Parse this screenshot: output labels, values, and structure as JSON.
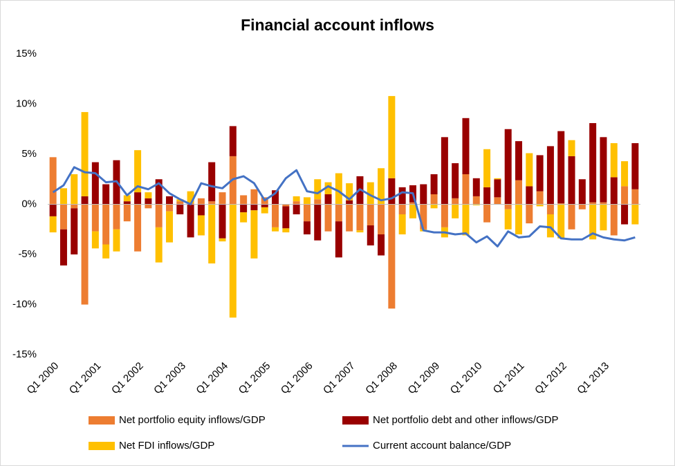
{
  "chart_data": {
    "type": "bar",
    "stacked": true,
    "title": "Financial account inflows",
    "categories": [
      "Q1 2000",
      null,
      null,
      null,
      "Q1 2001",
      null,
      null,
      null,
      "Q1 2002",
      null,
      null,
      null,
      "Q1 2003",
      null,
      null,
      null,
      "Q1 2004",
      null,
      null,
      null,
      "Q1 2005",
      null,
      null,
      null,
      "Q1 2006",
      null,
      null,
      null,
      "Q1 2007",
      null,
      null,
      null,
      "Q1 2008",
      null,
      null,
      null,
      "Q1 2009",
      null,
      null,
      null,
      "Q1 2010",
      null,
      null,
      null,
      "Q1 2011",
      null,
      null,
      null,
      "Q1 2012",
      null,
      null,
      null,
      "Q1 2013",
      null,
      null,
      null
    ],
    "series": [
      {
        "name": "Net portfolio equity inflows/GDP",
        "type": "bar",
        "color": "#ED7D31",
        "values": [
          4.7,
          -2.5,
          -0.4,
          -10.0,
          -2.7,
          -4.0,
          -2.5,
          -1.7,
          -4.7,
          -0.4,
          -2.3,
          -0.7,
          0.3,
          0.1,
          0.6,
          0.3,
          1.2,
          4.8,
          0.9,
          1.5,
          0.7,
          -2.3,
          -0.2,
          0.3,
          -1.7,
          0.5,
          -2.7,
          -1.7,
          -2.7,
          -2.6,
          -2.1,
          -3.0,
          -10.4,
          -1.0,
          0.2,
          -2.5,
          1.0,
          -2.3,
          0.6,
          3.0,
          0.8,
          -1.8,
          0.7,
          -0.5,
          2.4,
          -1.9,
          1.3,
          -1.0,
          0.1,
          -2.5,
          -0.5,
          0.2,
          0.2,
          -3.1,
          1.8,
          1.5
        ]
      },
      {
        "name": "Net portfolio debt and other inflows/GDP",
        "type": "bar",
        "color": "#990000",
        "values": [
          -1.2,
          -3.6,
          -4.6,
          0.8,
          4.2,
          2.0,
          4.4,
          0.3,
          1.2,
          0.6,
          2.5,
          0.8,
          -1.0,
          -3.3,
          -1.1,
          3.9,
          -3.4,
          3.0,
          -0.8,
          -0.6,
          -0.3,
          1.4,
          -2.2,
          -1.0,
          -1.3,
          -3.6,
          1.0,
          -3.6,
          0.4,
          2.8,
          -2.0,
          -2.1,
          2.6,
          1.7,
          1.7,
          2.0,
          2.0,
          6.7,
          3.5,
          5.6,
          1.8,
          1.7,
          1.8,
          7.5,
          3.9,
          1.8,
          3.6,
          5.8,
          7.2,
          4.8,
          2.5,
          7.9,
          6.5,
          2.7,
          -2.0,
          4.6
        ]
      },
      {
        "name": "Net FDI inflows/GDP",
        "type": "bar",
        "color": "#FFC000",
        "values": [
          -1.6,
          1.6,
          3.0,
          8.4,
          -1.7,
          -1.4,
          -2.2,
          0.6,
          4.2,
          0.6,
          -3.5,
          -3.1,
          0.2,
          1.2,
          -2.0,
          -5.9,
          -0.3,
          -11.3,
          -1.0,
          -4.8,
          -0.6,
          -0.4,
          -0.4,
          0.5,
          0.7,
          2.0,
          1.2,
          3.1,
          1.7,
          -0.2,
          2.2,
          3.6,
          8.2,
          -2.0,
          -1.4,
          -0.2,
          -0.4,
          -1.0,
          -1.4,
          -3.1,
          -0.1,
          3.8,
          0.1,
          -2.0,
          -3.0,
          3.3,
          -0.2,
          -2.3,
          -3.4,
          1.6,
          0,
          -3.5,
          -2.6,
          3.4,
          2.5,
          -2.0
        ]
      },
      {
        "name": "Current account balance/GDP",
        "type": "line",
        "color": "#4472C4",
        "values": [
          1.2,
          1.9,
          3.7,
          3.2,
          3.1,
          2.2,
          2.3,
          0.9,
          1.8,
          1.5,
          2.1,
          1.1,
          0.5,
          0.0,
          2.1,
          1.8,
          1.6,
          2.5,
          2.8,
          2.1,
          0.4,
          1.1,
          2.6,
          3.4,
          1.3,
          1.1,
          1.8,
          1.3,
          0.5,
          1.5,
          0.9,
          0.4,
          0.6,
          1.2,
          1.1,
          -2.6,
          -2.8,
          -2.8,
          -3.0,
          -2.9,
          -3.8,
          -3.2,
          -4.2,
          -2.7,
          -3.3,
          -3.2,
          -2.2,
          -2.3,
          -3.4,
          -3.5,
          -3.5,
          -2.9,
          -3.3,
          -3.5,
          -3.6,
          -3.3
        ]
      }
    ],
    "ylim": [
      -15,
      15
    ],
    "yticks": [
      {
        "value": -15,
        "label": "-15%"
      },
      {
        "value": -10,
        "label": "-10%"
      },
      {
        "value": -5,
        "label": "-5%"
      },
      {
        "value": 0,
        "label": "0%"
      },
      {
        "value": 5,
        "label": "5%"
      },
      {
        "value": 10,
        "label": "10%"
      },
      {
        "value": 15,
        "label": "15%"
      }
    ],
    "grid": false,
    "legend": "bottom"
  }
}
